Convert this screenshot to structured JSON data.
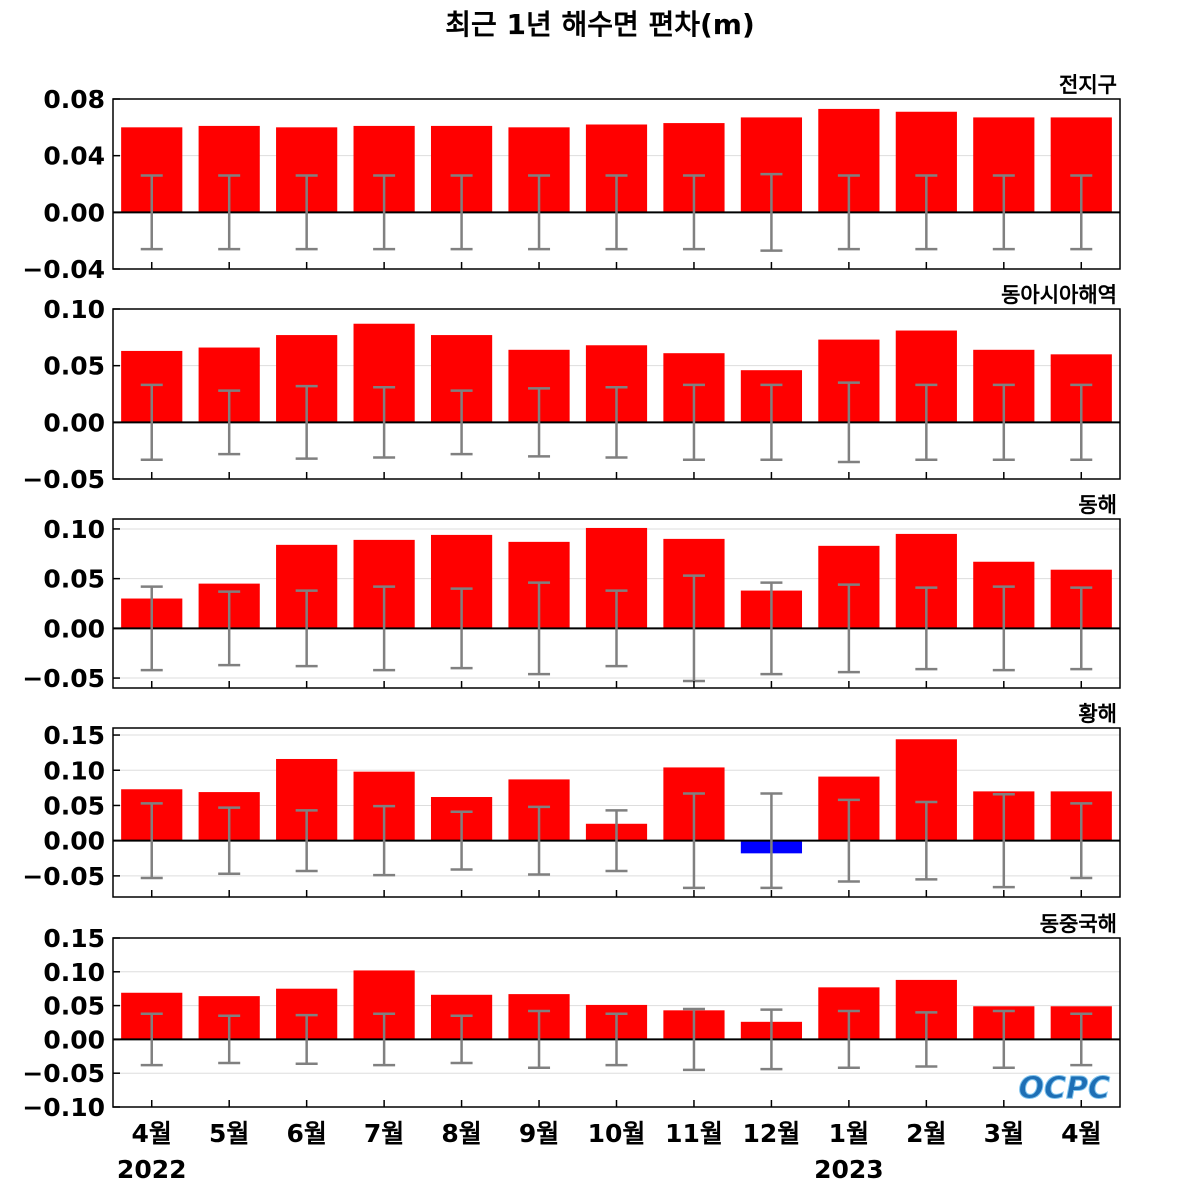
{
  "title": "최근 1년 해수면 편차(m)",
  "logo_text": "OCPC",
  "x_labels": [
    "4월",
    "5월",
    "6월",
    "7월",
    "8월",
    "9월",
    "10월",
    "11월",
    "12월",
    "1월",
    "2월",
    "3월",
    "4월"
  ],
  "year_labels": [
    {
      "text": "2022",
      "index": 0
    },
    {
      "text": "2023",
      "index": 9
    }
  ],
  "colors": {
    "positive": "#ff0000",
    "negative": "#0000ff",
    "errorbar": "#808080",
    "zeroline": "#000000",
    "grid": "#dddddd"
  },
  "chart_data": [
    {
      "type": "bar",
      "title": "전지구",
      "ylim": [
        -0.04,
        0.08
      ],
      "yticks": [
        -0.04,
        0.0,
        0.04,
        0.08
      ],
      "ytick_labels": [
        "−0.04",
        "0.00",
        "0.04",
        "0.08"
      ],
      "values": [
        0.06,
        0.061,
        0.06,
        0.061,
        0.061,
        0.06,
        0.062,
        0.063,
        0.067,
        0.073,
        0.071,
        0.067,
        0.067
      ],
      "error": [
        0.026,
        0.026,
        0.026,
        0.026,
        0.026,
        0.026,
        0.026,
        0.026,
        0.027,
        0.026,
        0.026,
        0.026,
        0.026
      ]
    },
    {
      "type": "bar",
      "title": "동아시아해역",
      "ylim": [
        -0.05,
        0.1
      ],
      "yticks": [
        -0.05,
        0.0,
        0.05,
        0.1
      ],
      "ytick_labels": [
        "−0.05",
        "0.00",
        "0.05",
        "0.10"
      ],
      "values": [
        0.063,
        0.066,
        0.077,
        0.087,
        0.077,
        0.064,
        0.068,
        0.061,
        0.046,
        0.073,
        0.081,
        0.064,
        0.06
      ],
      "error": [
        0.033,
        0.028,
        0.032,
        0.031,
        0.028,
        0.03,
        0.031,
        0.033,
        0.033,
        0.035,
        0.033,
        0.033,
        0.033
      ]
    },
    {
      "type": "bar",
      "title": "동해",
      "ylim": [
        -0.06,
        0.11
      ],
      "yticks": [
        -0.05,
        0.0,
        0.05,
        0.1
      ],
      "ytick_labels": [
        "−0.05",
        "0.00",
        "0.05",
        "0.10"
      ],
      "values": [
        0.03,
        0.045,
        0.084,
        0.089,
        0.094,
        0.087,
        0.101,
        0.09,
        0.038,
        0.083,
        0.095,
        0.067,
        0.059
      ],
      "error": [
        0.042,
        0.037,
        0.038,
        0.042,
        0.04,
        0.046,
        0.038,
        0.053,
        0.046,
        0.044,
        0.041,
        0.042,
        0.041
      ]
    },
    {
      "type": "bar",
      "title": "황해",
      "ylim": [
        -0.08,
        0.16
      ],
      "yticks": [
        -0.05,
        0.0,
        0.05,
        0.1,
        0.15
      ],
      "ytick_labels": [
        "−0.05",
        "0.00",
        "0.05",
        "0.10",
        "0.15"
      ],
      "values": [
        0.073,
        0.069,
        0.116,
        0.098,
        0.062,
        0.087,
        0.024,
        0.104,
        -0.018,
        0.091,
        0.144,
        0.07,
        0.07
      ],
      "error": [
        0.053,
        0.047,
        0.043,
        0.049,
        0.041,
        0.048,
        0.043,
        0.067,
        0.067,
        0.058,
        0.055,
        0.066,
        0.053
      ]
    },
    {
      "type": "bar",
      "title": "동중국해",
      "ylim": [
        -0.1,
        0.15
      ],
      "yticks": [
        -0.1,
        -0.05,
        0.0,
        0.05,
        0.1,
        0.15
      ],
      "ytick_labels": [
        "−0.10",
        "−0.05",
        "0.00",
        "0.05",
        "0.10",
        "0.15"
      ],
      "values": [
        0.069,
        0.064,
        0.075,
        0.102,
        0.066,
        0.067,
        0.051,
        0.043,
        0.026,
        0.077,
        0.088,
        0.049,
        0.049
      ],
      "error": [
        0.038,
        0.035,
        0.036,
        0.038,
        0.035,
        0.042,
        0.038,
        0.045,
        0.044,
        0.042,
        0.04,
        0.042,
        0.038
      ]
    }
  ]
}
